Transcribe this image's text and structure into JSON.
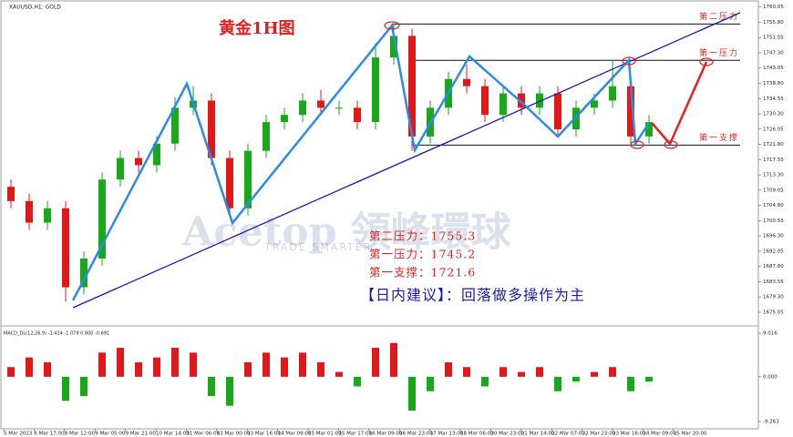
{
  "header": "XAUUSD,H1: GOLD",
  "chart_data": [
    {
      "type": "candlestick",
      "title": "黄金1H图",
      "watermark": [
        "Acetop 領峰環球",
        "TRADE SMARTER"
      ],
      "advice": "【日内建议】：回落做多操作为主",
      "xlabels": [
        "5 Mar 2023",
        "6 Mar 17:00",
        "8 Mar 12:00",
        "9 Mar 05:00",
        "9 Mar 21:00",
        "10 Mar 14:00",
        "11 Mar 06:00",
        "13 Mar 00:00",
        "13 Mar 16:00",
        "14 Mar 09:00",
        "15 Mar 01:00",
        "15 Mar 17:00",
        "16 Mar 09:00",
        "16 Mar 23:00",
        "17 Mar 13:00",
        "18 Mar 06:00",
        "20 Mar 23:00",
        "21 Mar 14:00",
        "22 Mar 07:00",
        "22 Mar 23:00",
        "23 Mar 16:00",
        "24 Mar 09:00",
        "25 Mar 20:00"
      ],
      "open": [
        1710,
        1706,
        1700,
        1704,
        1682,
        1690,
        1712,
        1718,
        1716,
        1722,
        1732,
        1734,
        1718,
        1704,
        1720,
        1728,
        1730,
        1734,
        1732,
        1732,
        1728,
        1746,
        1752,
        1724,
        1732,
        1740,
        1738,
        1730,
        1736,
        1732,
        1736,
        1726,
        1732,
        1734,
        1738,
        1724
      ],
      "high": [
        1712,
        1708,
        1706,
        1706,
        1692,
        1714,
        1720,
        1720,
        1724,
        1735,
        1738,
        1736,
        1720,
        1722,
        1730,
        1732,
        1736,
        1737,
        1734,
        1734,
        1750,
        1755.5,
        1754,
        1734,
        1742,
        1744,
        1740,
        1738,
        1738,
        1738,
        1738,
        1734,
        1736,
        1745,
        1740,
        1730
      ],
      "low": [
        1704,
        1698,
        1698,
        1678,
        1680,
        1688,
        1710,
        1714,
        1714,
        1720,
        1730,
        1716,
        1702,
        1702,
        1718,
        1726,
        1728,
        1730,
        1730,
        1726,
        1726,
        1744,
        1720,
        1722,
        1730,
        1736,
        1728,
        1728,
        1730,
        1730,
        1724,
        1724,
        1730,
        1732,
        1722,
        1722
      ],
      "close": [
        1706,
        1700,
        1704,
        1682,
        1690,
        1712,
        1718,
        1716,
        1722,
        1732,
        1734,
        1718,
        1704,
        1720,
        1728,
        1730,
        1734,
        1732,
        1732,
        1728,
        1746,
        1752,
        1724,
        1732,
        1740,
        1738,
        1730,
        1736,
        1732,
        1736,
        1726,
        1732,
        1734,
        1738,
        1724,
        1728
      ],
      "colors": {
        "up": "#18a818",
        "down": "#e01818"
      },
      "ylim": [
        1672,
        1762
      ],
      "yticks": [
        1760.05,
        {
          "value": 1755.8,
          "label": "1755.80"
        },
        1751.55,
        {
          "value": 1747.3,
          "label": "1747.30"
        },
        1743.05,
        {
          "value": 1738.8,
          "label": "1738.80"
        },
        1734.55,
        {
          "value": 1730.3,
          "label": "1730.30"
        },
        1726.05,
        {
          "value": 1721.8,
          "label": "1721.80"
        },
        1717.55,
        {
          "value": 1713.3,
          "label": "1713.30"
        },
        1709.05,
        {
          "value": 1704.8,
          "label": "1704.80"
        },
        1700.55,
        {
          "value": 1696.3,
          "label": "1696.30"
        },
        1692.05,
        {
          "value": 1687.8,
          "label": "1687.80"
        },
        1683.55,
        {
          "value": 1679.3,
          "label": "1679.30"
        },
        1675.05
      ],
      "levels": [
        {
          "name": "第二压力",
          "value": 1755.3,
          "text": "第二压力：1755.3"
        },
        {
          "name": "第一压力",
          "value": 1745.2,
          "text": "第一压力：1745.2"
        },
        {
          "name": "第一支撑",
          "value": 1721.6,
          "text": "第一支撑：1721.6"
        }
      ],
      "level_color": "#e02020"
    },
    {
      "type": "bar",
      "title": "MACD_DL(12,26,9) -1.424 -1.079 0.800 -0.691",
      "values": [
        2,
        4,
        3,
        -5,
        -4,
        5,
        6,
        3,
        4,
        6,
        5,
        -4,
        -6,
        3,
        5,
        4,
        5,
        3,
        1,
        -2,
        6,
        7,
        -7,
        -3,
        3,
        2,
        -2,
        2,
        1,
        2,
        -3,
        -1,
        1,
        2,
        -3,
        -1
      ],
      "colors": {
        "up": "#e01818",
        "down": "#18a818"
      },
      "ylim": [
        -9.263,
        9.016
      ],
      "yticks": [
        9.016,
        {
          "value": 0,
          "label": "0.000"
        },
        -9.263
      ]
    }
  ]
}
